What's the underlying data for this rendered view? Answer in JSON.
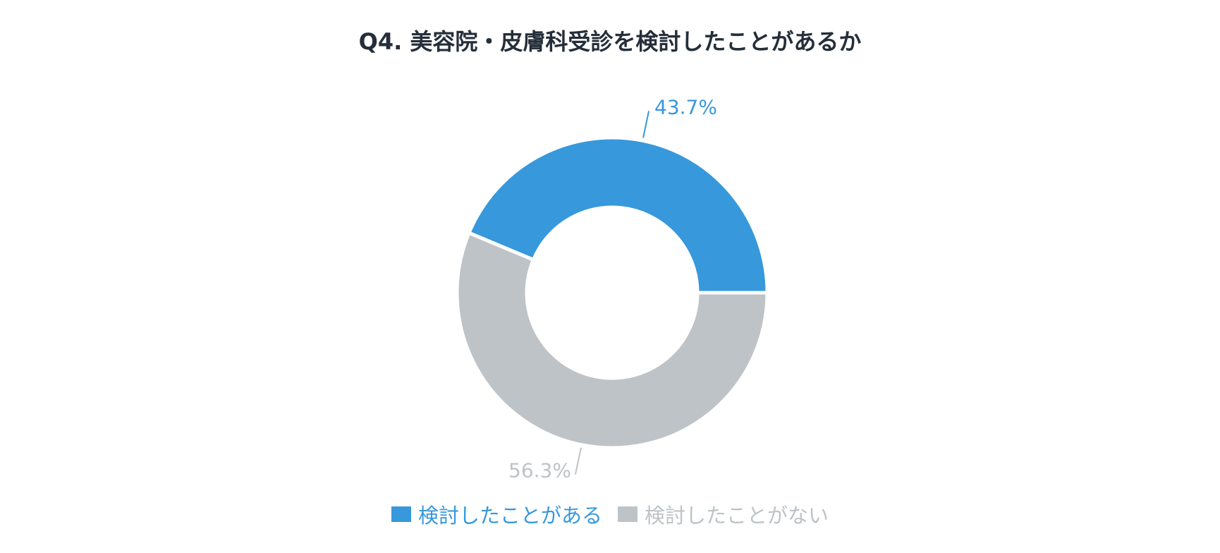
{
  "chart_data": {
    "type": "pie",
    "title": "Q4. 美容院・皮膚科受診を検討したことがあるか",
    "categories": [
      "検討したことがある",
      "検討したことがない"
    ],
    "values": [
      43.7,
      56.3
    ],
    "labels": [
      "43.7%",
      "56.3%"
    ],
    "colors": [
      "#3798db",
      "#bec3c7"
    ],
    "legend_position": "bottom"
  }
}
